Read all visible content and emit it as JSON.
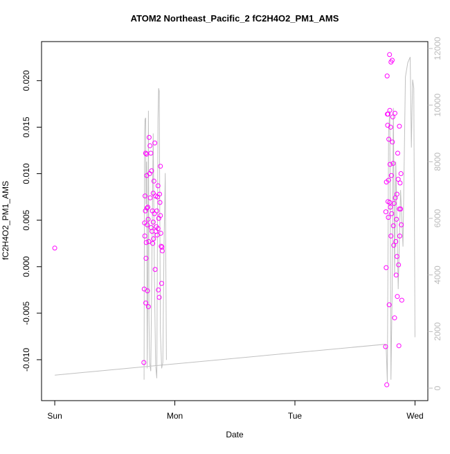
{
  "chart_data": {
    "type": "scatter",
    "title": "ATOM2 Northeast_Pacific_2 fC2H4O2_PM1_AMS",
    "xlabel": "Date",
    "ylabel": "fC2H4O2_PM1_AMS",
    "xlim": [
      -0.11,
      3.107
    ],
    "xticks": [
      {
        "value": 0,
        "label": "Sun"
      },
      {
        "value": 1,
        "label": "Mon"
      },
      {
        "value": 2,
        "label": "Tue"
      },
      {
        "value": 3,
        "label": "Wed"
      }
    ],
    "ylim": [
      -0.0144,
      0.0242
    ],
    "yticks": [
      {
        "value": -0.01,
        "label": "-0.010"
      },
      {
        "value": -0.005,
        "label": "-0.005"
      },
      {
        "value": 0,
        "label": "0.000"
      },
      {
        "value": 0.005,
        "label": "0.005"
      },
      {
        "value": 0.01,
        "label": "0.010"
      },
      {
        "value": 0.015,
        "label": "0.015"
      },
      {
        "value": 0.02,
        "label": "0.020"
      }
    ],
    "y2lim": [
      -441,
      12245
    ],
    "y2ticks": [
      0,
      2000,
      4000,
      6000,
      8000,
      10000,
      12000
    ],
    "series": [
      {
        "type": "scatter",
        "color": "#ff00ff",
        "x": [
          0,
          0.742,
          0.745,
          0.748,
          0.75,
          0.752,
          0.755,
          0.757,
          0.758,
          0.76,
          0.762,
          0.764,
          0.766,
          0.768,
          0.77,
          0.772,
          0.775,
          0.778,
          0.78,
          0.783,
          0.786,
          0.79,
          0.793,
          0.795,
          0.8,
          0.803,
          0.806,
          0.81,
          0.813,
          0.816,
          0.82,
          0.823,
          0.826,
          0.83,
          0.833,
          0.836,
          0.84,
          0.843,
          0.846,
          0.85,
          0.853,
          0.856,
          0.86,
          0.863,
          0.866,
          0.87,
          0.873,
          0.876,
          0.88,
          0.883,
          0.886,
          0.89,
          0.893,
          0.896,
          0.88,
          0.86,
          0.82,
          2.755,
          2.757,
          2.76,
          2.762,
          2.765,
          2.768,
          2.77,
          2.772,
          2.775,
          2.778,
          2.78,
          2.782,
          2.785,
          2.788,
          2.79,
          2.792,
          2.795,
          2.797,
          2.8,
          2.803,
          2.806,
          2.81,
          2.812,
          2.815,
          2.818,
          2.82,
          2.823,
          2.826,
          2.83,
          2.833,
          2.836,
          2.84,
          2.843,
          2.846,
          2.85,
          2.853,
          2.856,
          2.86,
          2.863,
          2.866,
          2.87,
          2.873,
          2.876,
          2.88,
          2.883,
          2.886,
          2.89,
          2.85,
          2.87,
          2.8,
          2.79,
          2.776
        ],
        "values": [
          0.002,
          -0.0103,
          -0.0024,
          0.0047,
          0.0033,
          0.0076,
          0.006,
          0.0122,
          -0.0039,
          0.0009,
          0.0026,
          0.0121,
          0.0098,
          0.0063,
          0.0045,
          -0.0026,
          0.0064,
          0.0051,
          -0.0043,
          0.0027,
          0.0139,
          0.01,
          0.013,
          0.0074,
          0.0122,
          0.0042,
          0.0103,
          0.0038,
          0.006,
          0.0025,
          0.0079,
          0.003,
          0.0092,
          0.0057,
          0.0133,
          -0.0003,
          0.0076,
          0.0038,
          0.0043,
          0.006,
          0.0034,
          0.0075,
          0.0087,
          -0.0025,
          0.0052,
          -0.0033,
          0.0078,
          0.0069,
          0.0055,
          0.0036,
          0.0022,
          -0.0018,
          0.0021,
          0.0017,
          0.0108,
          0.0041,
          0.0048,
          -0.0086,
          0.0059,
          -0.0001,
          0.0091,
          -0.0127,
          0.0205,
          0.0164,
          0.0152,
          0.007,
          0.0053,
          0.0093,
          0.0137,
          -0.0041,
          0.0228,
          0.0168,
          0.011,
          0.0064,
          0.015,
          0.022,
          0.0098,
          0.0057,
          0.0222,
          0.0134,
          0.0161,
          0.0111,
          0.0044,
          0.0023,
          0.0068,
          -0.0055,
          0.0165,
          0.0074,
          0.0027,
          -0.0009,
          0.0051,
          0.0078,
          -0.0032,
          0.0122,
          0.0094,
          0.0002,
          -0.0085,
          0.0151,
          0.0033,
          0.009,
          0.0062,
          0.01,
          0.0045,
          -0.0036,
          0.0011,
          0.0062,
          0.0033,
          0.0069,
          0.0164
        ]
      },
      {
        "type": "line",
        "color": "#c0c0c0",
        "axis": "y2",
        "x": [
          0.744,
          0.748,
          0.752,
          0.757,
          0.76,
          0.765,
          0.77,
          0.775,
          0.78,
          0.785,
          0.79,
          0.8,
          0.81,
          0.82,
          0.83,
          0.84,
          0.85,
          0.86,
          0.865,
          0.87,
          0.875,
          0.88,
          0.89,
          0.9,
          0.91,
          0.92,
          0.93,
          null,
          0,
          2.75,
          2.76,
          2.77,
          2.78,
          2.79,
          2.8,
          2.81,
          2.82,
          2.83,
          2.84,
          2.86,
          2.88,
          2.9,
          2.92,
          2.94,
          2.96,
          2.97,
          2.98,
          2.99,
          3.0
        ],
        "values": [
          300,
          9000,
          9500,
          9550,
          6500,
          8000,
          700,
          4000,
          9800,
          2500,
          900,
          600,
          5000,
          9000,
          4000,
          800,
          350,
          9500,
          10600,
          10500,
          6000,
          2000,
          700,
          900,
          5000,
          7600,
          1000,
          null,
          460,
          1550,
          1450,
          200,
          9000,
          9800,
          300,
          3500,
          9900,
          4000,
          8000,
          3500,
          7000,
          5000,
          11000,
          11500,
          11700,
          8500,
          10900,
          10600,
          1800
        ]
      }
    ]
  }
}
